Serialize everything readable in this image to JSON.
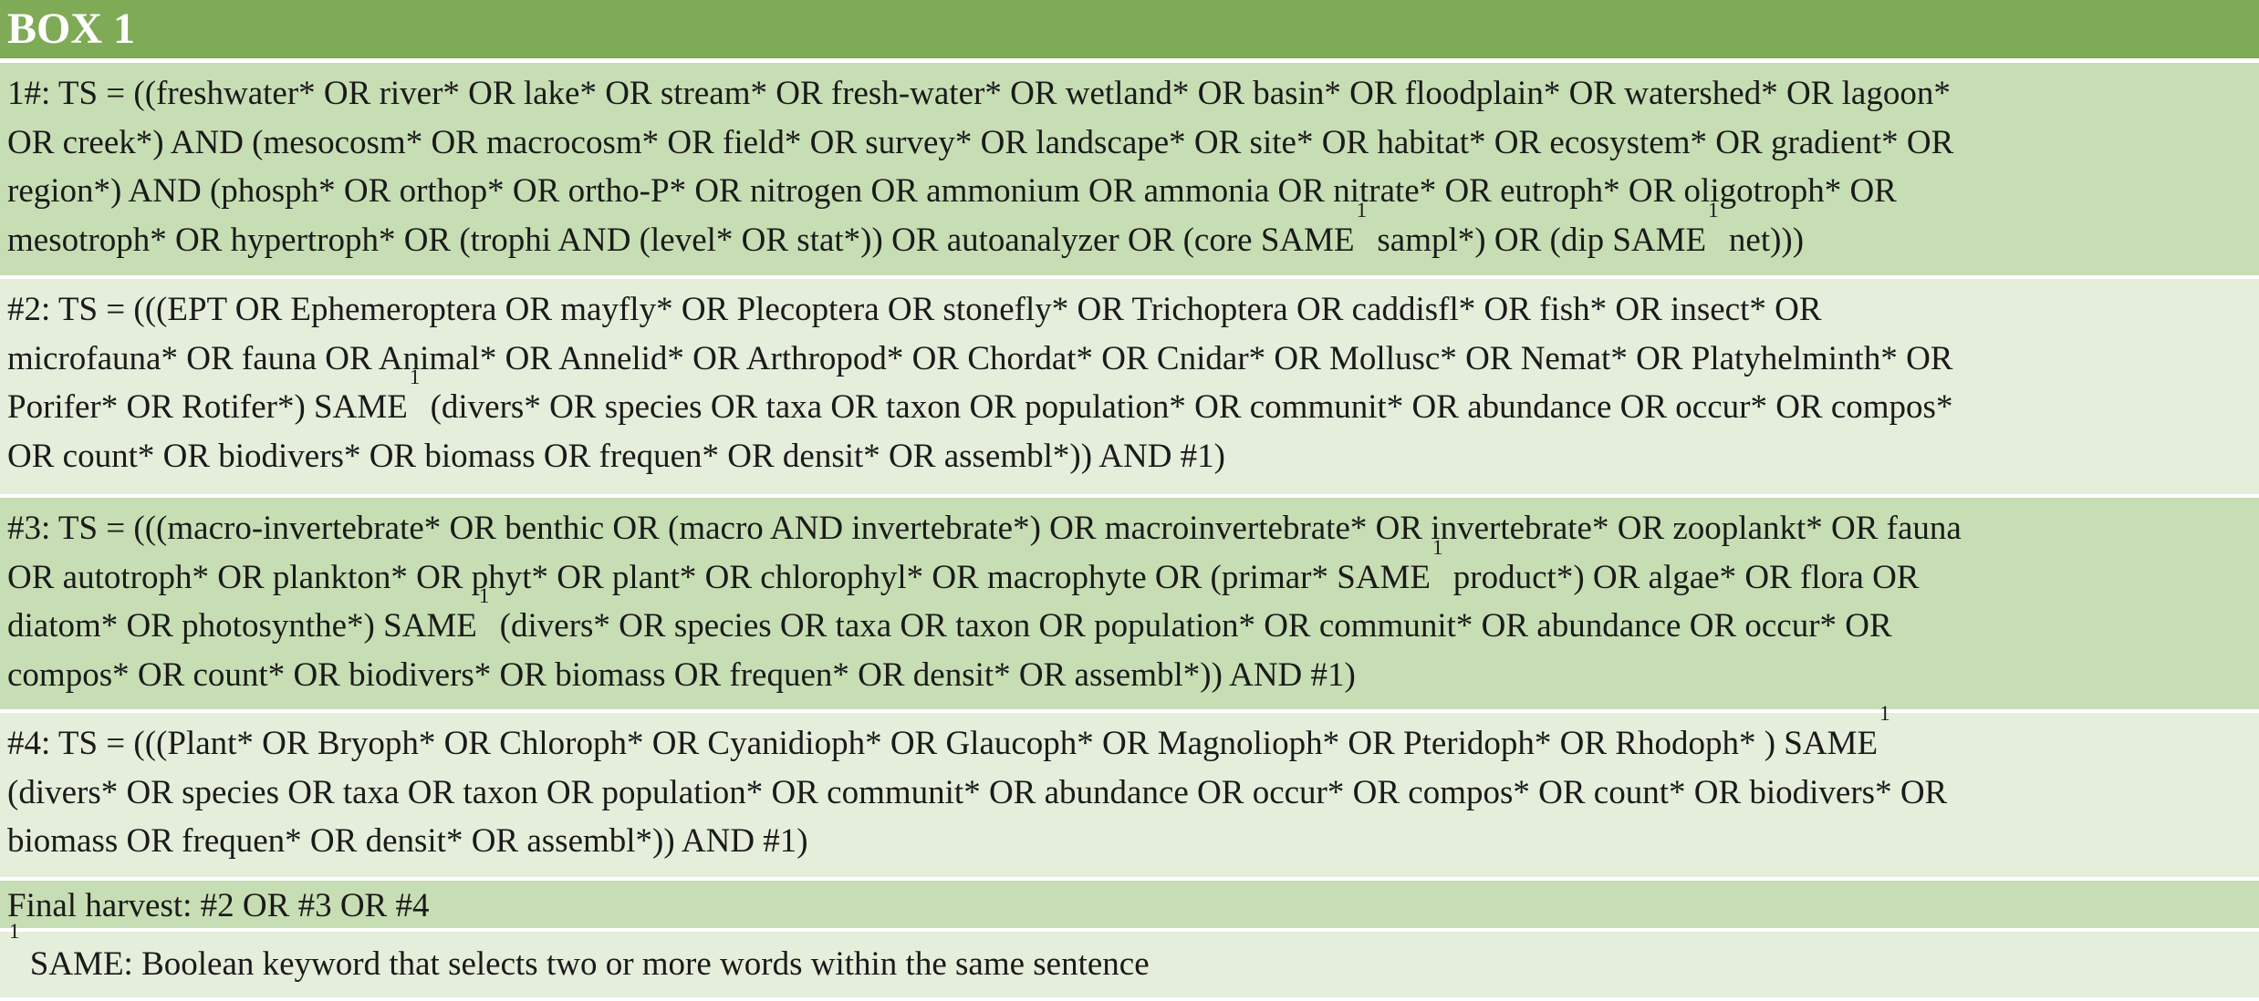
{
  "box": {
    "title": "BOX 1"
  },
  "rows": [
    {
      "lines": [
        "1#: TS = ((freshwater* OR river* OR lake* OR stream* OR fresh-water* OR wetland* OR basin* OR floodplain* OR watershed* OR lagoon*",
        "OR creek*) AND (mesocosm* OR macrocosm* OR field* OR survey* OR landscape* OR site* OR habitat* OR ecosystem* OR gradient* OR",
        "region*) AND (phosph* OR orthop* OR ortho-P* OR nitrogen OR ammonium OR ammonia OR nitrate* OR eutroph* OR oligotroph* OR"
      ],
      "last_line": {
        "a": "mesotroph* OR hypertroph* OR (trophi AND (level* OR stat*)) OR autoanalyzer OR (core SAME",
        "sup1": "1",
        "b": " sampl*) OR (dip SAME",
        "sup2": "1",
        "c": " net)))"
      }
    },
    {
      "lines": [
        "#2: TS = (((EPT OR Ephemeroptera OR mayfly* OR Plecoptera OR stonefly* OR Trichoptera OR caddisfl* OR fish* OR insect* OR",
        "microfauna* OR fauna OR Animal* OR Annelid* OR Arthropod* OR Chordat* OR Cnidar* OR Mollusc* OR Nemat* OR Platyhelminth* OR"
      ],
      "line3": {
        "a": "Porifer* OR Rotifer*) SAME",
        "sup": "1",
        "b": " (divers* OR species OR taxa OR taxon OR population* OR communit* OR abundance OR occur* OR compos*"
      },
      "line4": "OR count* OR biodivers* OR biomass OR frequen* OR densit* OR assembl*)) AND #1)"
    },
    {
      "line1": "#3: TS = (((macro-invertebrate* OR benthic OR (macro AND invertebrate*) OR macroinvertebrate* OR invertebrate* OR zooplankt* OR fauna",
      "line2": {
        "a": "OR autotroph* OR plankton* OR phyt* OR plant* OR chlorophyl* OR macrophyte OR (primar* SAME",
        "sup": "1",
        "b": " product*) OR algae* OR flora OR"
      },
      "line3": {
        "a": "diatom* OR photosynthe*) SAME",
        "sup": "1",
        "b": " (divers* OR species OR taxa OR taxon OR population* OR communit* OR abundance OR occur* OR"
      },
      "line4": "compos* OR count* OR biodivers* OR biomass OR frequen* OR densit* OR assembl*)) AND #1)"
    },
    {
      "line1": {
        "a": "#4: TS = (((Plant* OR Bryoph* OR Chloroph* OR Cyanidioph* OR Glaucoph* OR Magnolioph* OR Pteridoph* OR Rhodoph* ) SAME",
        "sup": "1"
      },
      "line2": "(divers* OR species OR taxa OR taxon OR population* OR communit* OR abundance OR occur* OR compos* OR count* OR biodivers* OR",
      "line3": "biomass OR frequen* OR densit* OR assembl*)) AND #1)"
    }
  ],
  "final_harvest": "Final harvest: #2 OR #3 OR #4",
  "footnote": {
    "marker": "1",
    "text": " SAME: Boolean keyword that selects two or more words within the same sentence"
  },
  "colors": {
    "header": "#7fab56",
    "row_dark": "#c7deb4",
    "row_light": "#e4eedb"
  }
}
